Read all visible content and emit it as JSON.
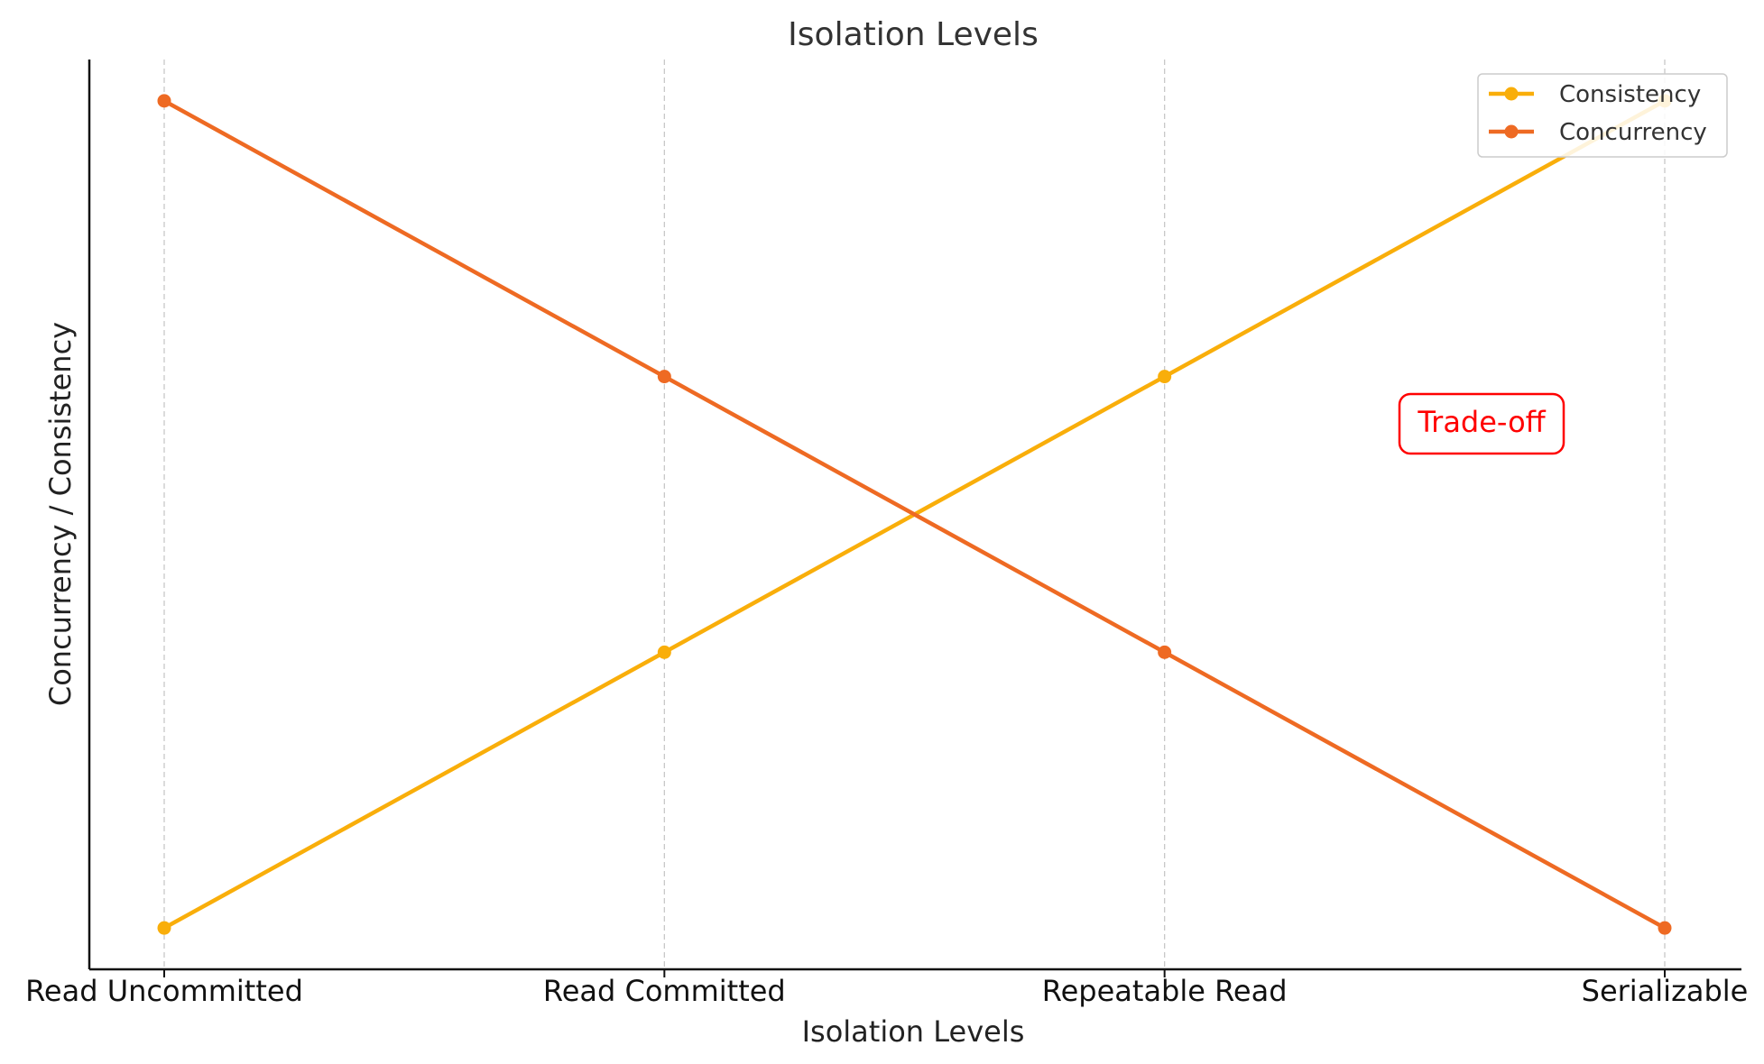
{
  "chart_data": {
    "type": "line",
    "title": "Isolation Levels",
    "xlabel": "Isolation Levels",
    "ylabel": "Concurrency / Consistency",
    "categories": [
      "Read Uncommitted",
      "Read Committed",
      "Repeatable Read",
      "Serializable"
    ],
    "series": [
      {
        "name": "Consistency",
        "values": [
          1,
          2,
          3,
          4
        ],
        "color": "#F9AE0A"
      },
      {
        "name": "Concurrency",
        "values": [
          4,
          3,
          2,
          1
        ],
        "color": "#EE6A23"
      }
    ],
    "ylim": [
      0.85,
      4.15
    ],
    "y_ticks_shown": false,
    "grid": "vertical dashed at categories",
    "legend_position": "top-right",
    "annotations": [
      {
        "text": "Trade-off",
        "color": "#FF0000"
      }
    ]
  }
}
